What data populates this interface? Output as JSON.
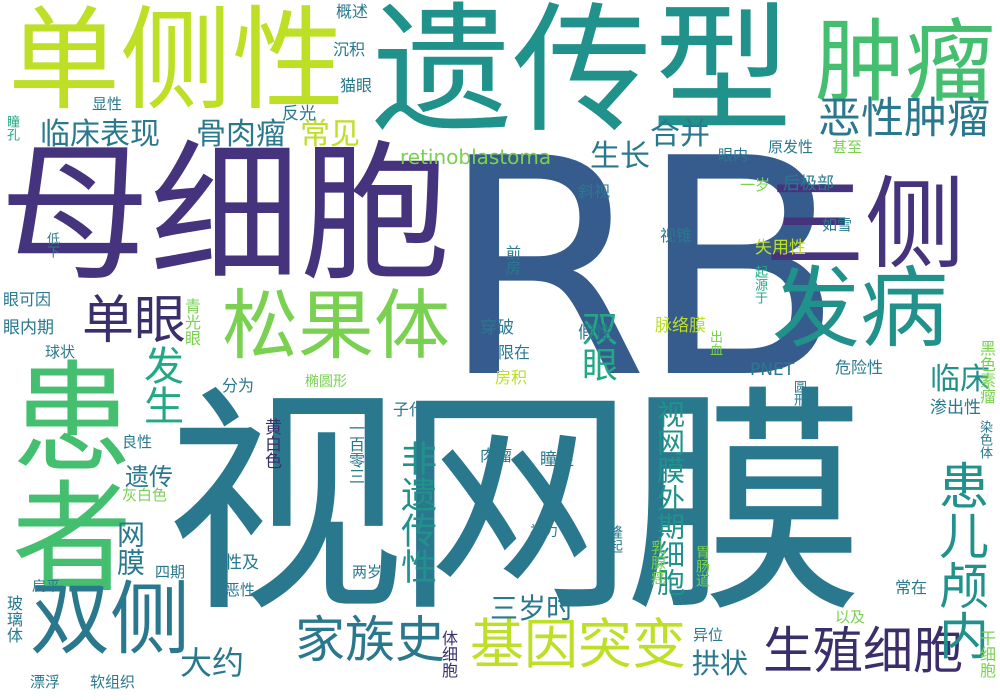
{
  "palette": {
    "background": "#ffffff",
    "dark_purple": "#3b2f6b",
    "indigo": "#46337e",
    "blue": "#365c8d",
    "teal": "#2a788e",
    "sea_green": "#21918c",
    "green": "#22a884",
    "light_green": "#44bf70",
    "lime": "#7ad151",
    "yellow_green": "#bddf26",
    "yellow": "#dbe21a"
  },
  "words": [
    {
      "text": "RB",
      "color": "#365c8d"
    },
    {
      "text": "视网膜",
      "color": "#2a788e"
    },
    {
      "text": "母细胞",
      "color": "#46337e"
    },
    {
      "text": "遗传型",
      "color": "#21918c"
    },
    {
      "text": "单侧性",
      "color": "#bddf26"
    },
    {
      "text": "肿瘤",
      "color": "#44bf70"
    },
    {
      "text": "三侧",
      "color": "#46337e"
    },
    {
      "text": "患者",
      "color": "#44bf70"
    },
    {
      "text": "发病",
      "color": "#21918c"
    },
    {
      "text": "松果体",
      "color": "#7ad151"
    },
    {
      "text": "双侧",
      "color": "#2a788e"
    },
    {
      "text": "恶性肿瘤",
      "color": "#2a788e"
    },
    {
      "text": "单眼",
      "color": "#3b2f6b"
    },
    {
      "text": "基因突变",
      "color": "#bddf26"
    },
    {
      "text": "家族史",
      "color": "#2a788e"
    },
    {
      "text": "生殖细胞",
      "color": "#3b2f6b"
    },
    {
      "text": "患儿颅内",
      "color": "#21918c"
    },
    {
      "text": "临床表现",
      "color": "#2a788e"
    },
    {
      "text": "骨肉瘤",
      "color": "#2a788e"
    },
    {
      "text": "常见",
      "color": "#bddf26"
    },
    {
      "text": "生长",
      "color": "#2a788e"
    },
    {
      "text": "合并",
      "color": "#2a788e"
    },
    {
      "text": "retinoblastoma",
      "color": "#7ad151"
    },
    {
      "text": "发生",
      "color": "#22a884"
    },
    {
      "text": "遗传",
      "color": "#2a788e"
    },
    {
      "text": "双眼",
      "color": "#22a884"
    },
    {
      "text": "临床",
      "color": "#21918c"
    },
    {
      "text": "非遗传性",
      "color": "#21918c"
    },
    {
      "text": "三岁时",
      "color": "#2a788e"
    },
    {
      "text": "大约",
      "color": "#2a788e"
    },
    {
      "text": "拱状",
      "color": "#2a788e"
    },
    {
      "text": "网膜",
      "color": "#2a788e"
    },
    {
      "text": "视网膜外期细胞",
      "color": "#21918c"
    },
    {
      "text": "概述",
      "color": "#2a788e"
    },
    {
      "text": "沉积",
      "color": "#2a788e"
    },
    {
      "text": "猫眼",
      "color": "#2a788e"
    },
    {
      "text": "反光",
      "color": "#2a788e"
    },
    {
      "text": "显性",
      "color": "#2a788e"
    },
    {
      "text": "瞳孔",
      "color": "#22a884"
    },
    {
      "text": "眼内",
      "color": "#2a788e"
    },
    {
      "text": "原发性",
      "color": "#2a788e"
    },
    {
      "text": "甚至",
      "color": "#7ad151"
    },
    {
      "text": "一岁",
      "color": "#7ad151"
    },
    {
      "text": "后极部",
      "color": "#2a788e"
    },
    {
      "text": "斜视",
      "color": "#2a788e"
    },
    {
      "text": "视锥",
      "color": "#2a788e"
    },
    {
      "text": "前房",
      "color": "#2a788e"
    },
    {
      "text": "失用性",
      "color": "#bddf26"
    },
    {
      "text": "如雪",
      "color": "#2a788e"
    },
    {
      "text": "起源于",
      "color": "#22a884"
    },
    {
      "text": "低下",
      "color": "#2a788e"
    },
    {
      "text": "眼可因",
      "color": "#2a788e"
    },
    {
      "text": "青光眼",
      "color": "#7ad151"
    },
    {
      "text": "眼内期",
      "color": "#2a788e"
    },
    {
      "text": "球状",
      "color": "#2a788e"
    },
    {
      "text": "穿破",
      "color": "#2a788e"
    },
    {
      "text": "假性",
      "color": "#2a788e"
    },
    {
      "text": "脉络膜",
      "color": "#bddf26"
    },
    {
      "text": "出血",
      "color": "#7ad151"
    },
    {
      "text": "黑色素瘤",
      "color": "#7ad151"
    },
    {
      "text": "限在",
      "color": "#2a788e"
    },
    {
      "text": "房积",
      "color": "#bddf26"
    },
    {
      "text": "PNET",
      "color": "#2a788e"
    },
    {
      "text": "危险性",
      "color": "#2a788e"
    },
    {
      "text": "分为",
      "color": "#2a788e"
    },
    {
      "text": "椭圆形",
      "color": "#7ad151"
    },
    {
      "text": "圆形",
      "color": "#2a788e"
    },
    {
      "text": "子代",
      "color": "#2a788e"
    },
    {
      "text": "渗出性",
      "color": "#2a788e"
    },
    {
      "text": "良性",
      "color": "#2a788e"
    },
    {
      "text": "黄白色",
      "color": "#3b2f6b"
    },
    {
      "text": "一百零三",
      "color": "#2a788e"
    },
    {
      "text": "肉瘤",
      "color": "#2a788e"
    },
    {
      "text": "瞳症",
      "color": "#2a788e"
    },
    {
      "text": "染色体",
      "color": "#2a788e"
    },
    {
      "text": "灰白色",
      "color": "#7ad151"
    },
    {
      "text": "视力",
      "color": "#2a788e"
    },
    {
      "text": "隆起",
      "color": "#2a788e"
    },
    {
      "text": "四期",
      "color": "#2a788e"
    },
    {
      "text": "性及",
      "color": "#2a788e"
    },
    {
      "text": "恶性",
      "color": "#2a788e"
    },
    {
      "text": "扁平",
      "color": "#2a788e"
    },
    {
      "text": "两岁",
      "color": "#2a788e"
    },
    {
      "text": "乳腺癌",
      "color": "#7ad151"
    },
    {
      "text": "胃肠道",
      "color": "#7ad151"
    },
    {
      "text": "常在",
      "color": "#2a788e"
    },
    {
      "text": "玻璃体",
      "color": "#2a788e"
    },
    {
      "text": "异位",
      "color": "#2a788e"
    },
    {
      "text": "以及",
      "color": "#7ad151"
    },
    {
      "text": "体细胞",
      "color": "#3b2f6b"
    },
    {
      "text": "漂浮",
      "color": "#2a788e"
    },
    {
      "text": "软组织",
      "color": "#2a788e"
    },
    {
      "text": "干细胞",
      "color": "#7ad151"
    }
  ]
}
